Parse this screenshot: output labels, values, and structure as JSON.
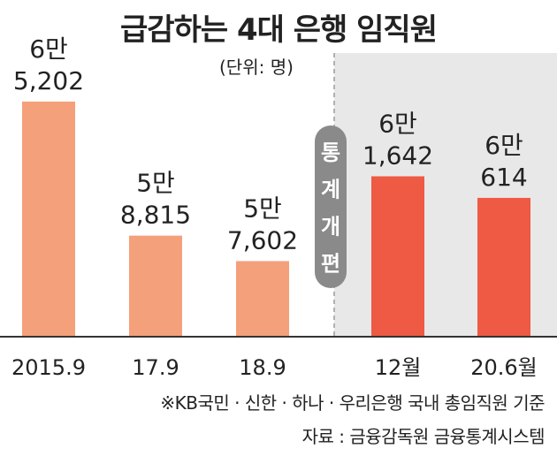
{
  "chart_data": {
    "type": "bar",
    "title": "급감하는 4대 은행 임직원",
    "unit_label": "(단위: 명)",
    "categories": [
      "2015.9",
      "17.9",
      "18.9",
      "12월",
      "20.6월"
    ],
    "values": [
      65202,
      58815,
      57602,
      61642,
      60614
    ],
    "value_labels": [
      [
        "6만",
        "5,202"
      ],
      [
        "5만",
        "8,815"
      ],
      [
        "5만",
        "7,602"
      ],
      [
        "6만",
        "1,642"
      ],
      [
        "6만",
        "614"
      ]
    ],
    "series_groups": [
      "before",
      "before",
      "before",
      "after",
      "after"
    ],
    "ylim": [
      54000,
      66000
    ],
    "annotation": "통계 개편",
    "footnote": "※KB국민 · 신한 · 하나 · 우리은행 국내 총임직원 기준",
    "source": "자료 : 금융감독원 금융통계시스템",
    "colors": {
      "before": "#F4A07A",
      "after": "#EE5A43",
      "shade": "#E8E8E8",
      "annotation_bg": "#8A8A8A",
      "axis": "#333333"
    }
  }
}
